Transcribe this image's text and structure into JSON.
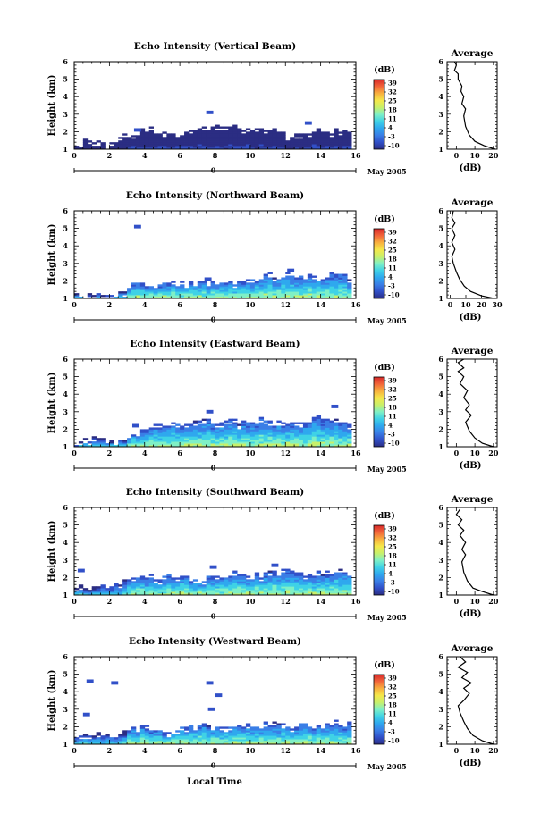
{
  "figure": {
    "xlabel": "Local Time",
    "date_label": "May 2005",
    "midnight_label": "0"
  },
  "colorbar": {
    "unit": "(dB)",
    "ticks": [
      "39",
      "32",
      "25",
      "18",
      "11",
      "4",
      "-3",
      "-10"
    ],
    "range": [
      -10,
      39
    ],
    "colors": [
      "#2b2d83",
      "#3150c8",
      "#3a7ee6",
      "#2fa8ee",
      "#3fd2e6",
      "#7ff0c6",
      "#c8f06a",
      "#f5e84a",
      "#f8b03e",
      "#f2653a",
      "#d82a2a"
    ]
  },
  "chart_data": [
    {
      "type": "heatmap",
      "title": "Echo Intensity (Vertical Beam)",
      "ylabel": "Height (km)",
      "xlim": [
        0,
        16
      ],
      "ylim": [
        1,
        6
      ],
      "xticks": [
        0,
        2,
        4,
        6,
        8,
        10,
        12,
        14,
        16
      ],
      "yticks": [
        1,
        2,
        3,
        4,
        5,
        6
      ],
      "echo_top_km": [
        [
          0,
          1.5
        ],
        [
          1,
          1.5
        ],
        [
          2,
          1.4
        ],
        [
          3,
          1.9
        ],
        [
          4,
          2.2
        ],
        [
          5,
          2.0
        ],
        [
          6,
          1.8
        ],
        [
          7,
          2.3
        ],
        [
          8,
          2.4
        ],
        [
          9,
          2.3
        ],
        [
          10,
          2.3
        ],
        [
          11,
          2.2
        ],
        [
          12,
          1.8
        ],
        [
          13,
          1.8
        ],
        [
          14,
          2.1
        ],
        [
          15,
          2.1
        ],
        [
          15.8,
          1.9
        ]
      ],
      "clouds": [
        [
          7.5,
          3.1
        ],
        [
          3.4,
          2.1
        ],
        [
          13.1,
          2.5
        ]
      ],
      "near_surface_dB": -3,
      "average": {
        "title": "Average",
        "xlabel": "(dB)",
        "xlim": [
          -5,
          22
        ],
        "xticks": [
          0,
          10,
          20
        ],
        "ylim": [
          1,
          6
        ],
        "profile": [
          [
            21,
            1.0
          ],
          [
            15,
            1.2
          ],
          [
            10,
            1.45
          ],
          [
            7,
            1.8
          ],
          [
            5,
            2.3
          ],
          [
            4,
            2.9
          ],
          [
            5,
            3.3
          ],
          [
            3,
            3.6
          ],
          [
            4,
            4.0
          ],
          [
            2.5,
            4.3
          ],
          [
            3,
            4.6
          ],
          [
            1,
            5.0
          ],
          [
            1,
            5.3
          ],
          [
            -1,
            5.5
          ],
          [
            0,
            5.8
          ],
          [
            -1,
            6.0
          ]
        ]
      }
    },
    {
      "type": "heatmap",
      "title": "Echo Intensity (Northward Beam)",
      "ylabel": "Height (km)",
      "xlim": [
        0,
        16
      ],
      "ylim": [
        1,
        6
      ],
      "xticks": [
        0,
        2,
        4,
        6,
        8,
        10,
        12,
        14,
        16
      ],
      "yticks": [
        1,
        2,
        3,
        4,
        5,
        6
      ],
      "echo_top_km": [
        [
          0,
          1.2
        ],
        [
          1,
          1.2
        ],
        [
          2,
          1.3
        ],
        [
          3,
          1.5
        ],
        [
          3.5,
          2.0
        ],
        [
          4,
          1.9
        ],
        [
          5,
          1.8
        ],
        [
          6,
          1.9
        ],
        [
          7,
          1.9
        ],
        [
          8,
          1.9
        ],
        [
          9,
          2.0
        ],
        [
          10,
          2.2
        ],
        [
          11,
          2.3
        ],
        [
          12,
          2.3
        ],
        [
          13,
          2.4
        ],
        [
          14,
          2.3
        ],
        [
          15,
          2.5
        ],
        [
          15.8,
          2.2
        ]
      ],
      "clouds": [
        [
          3.4,
          5.1
        ],
        [
          12.1,
          2.6
        ],
        [
          7.4,
          2.1
        ]
      ],
      "near_surface_dB": 18,
      "average": {
        "title": "Average",
        "xlabel": "(dB)",
        "xlim": [
          -2,
          30
        ],
        "xticks": [
          0,
          10,
          20,
          30
        ],
        "ylim": [
          1,
          6
        ],
        "profile": [
          [
            28,
            1.0
          ],
          [
            20,
            1.15
          ],
          [
            13,
            1.4
          ],
          [
            9,
            1.7
          ],
          [
            6,
            2.1
          ],
          [
            4,
            2.5
          ],
          [
            2,
            3.0
          ],
          [
            1,
            3.4
          ],
          [
            3,
            3.8
          ],
          [
            1,
            4.2
          ],
          [
            3,
            4.6
          ],
          [
            1,
            5.0
          ],
          [
            3,
            5.3
          ],
          [
            1,
            5.6
          ],
          [
            2,
            6.0
          ]
        ]
      }
    },
    {
      "type": "heatmap",
      "title": "Echo Intensity (Eastward Beam)",
      "ylabel": "Height (km)",
      "xlim": [
        0,
        16
      ],
      "ylim": [
        1,
        6
      ],
      "xticks": [
        0,
        2,
        4,
        6,
        8,
        10,
        12,
        14,
        16
      ],
      "yticks": [
        1,
        2,
        3,
        4,
        5,
        6
      ],
      "echo_top_km": [
        [
          0,
          1.2
        ],
        [
          1,
          1.4
        ],
        [
          2,
          1.4
        ],
        [
          3,
          1.6
        ],
        [
          4,
          2.0
        ],
        [
          5,
          2.2
        ],
        [
          6,
          2.3
        ],
        [
          7,
          2.6
        ],
        [
          8,
          2.4
        ],
        [
          9,
          2.4
        ],
        [
          10,
          2.5
        ],
        [
          11,
          2.5
        ],
        [
          12,
          2.4
        ],
        [
          13,
          2.4
        ],
        [
          14,
          2.7
        ],
        [
          15,
          2.5
        ],
        [
          15.8,
          2.2
        ]
      ],
      "clouds": [
        [
          7.5,
          3.0
        ],
        [
          14.6,
          3.3
        ],
        [
          3.3,
          2.2
        ]
      ],
      "near_surface_dB": 18,
      "average": {
        "title": "Average",
        "xlabel": "(dB)",
        "xlim": [
          -5,
          22
        ],
        "xticks": [
          0,
          10,
          20
        ],
        "ylim": [
          1,
          6
        ],
        "profile": [
          [
            20,
            1.0
          ],
          [
            14,
            1.2
          ],
          [
            10,
            1.5
          ],
          [
            7,
            1.9
          ],
          [
            5,
            2.4
          ],
          [
            8,
            2.8
          ],
          [
            5,
            3.1
          ],
          [
            7,
            3.4
          ],
          [
            4,
            3.8
          ],
          [
            6,
            4.2
          ],
          [
            2,
            4.6
          ],
          [
            4,
            5.0
          ],
          [
            1,
            5.3
          ],
          [
            4,
            5.5
          ],
          [
            1,
            5.8
          ],
          [
            4,
            6.0
          ]
        ]
      }
    },
    {
      "type": "heatmap",
      "title": "Echo Intensity (Southward Beam)",
      "ylabel": "Height (km)",
      "xlim": [
        0,
        16
      ],
      "ylim": [
        1,
        6
      ],
      "xticks": [
        0,
        2,
        4,
        6,
        8,
        10,
        12,
        14,
        16
      ],
      "yticks": [
        1,
        2,
        3,
        4,
        5,
        6
      ],
      "echo_top_km": [
        [
          0,
          1.4
        ],
        [
          1,
          1.4
        ],
        [
          2,
          1.6
        ],
        [
          3,
          1.9
        ],
        [
          4,
          2.0
        ],
        [
          5,
          2.0
        ],
        [
          6,
          2.1
        ],
        [
          7,
          1.9
        ],
        [
          8,
          2.1
        ],
        [
          9,
          2.2
        ],
        [
          10,
          2.2
        ],
        [
          11,
          2.3
        ],
        [
          12,
          2.4
        ],
        [
          13,
          2.3
        ],
        [
          14,
          2.3
        ],
        [
          15,
          2.4
        ],
        [
          15.8,
          2.2
        ]
      ],
      "clouds": [
        [
          0.2,
          2.4
        ],
        [
          7.7,
          2.6
        ],
        [
          11.2,
          2.7
        ]
      ],
      "near_surface_dB": 18,
      "average": {
        "title": "Average",
        "xlabel": "(dB)",
        "xlim": [
          -5,
          22
        ],
        "xticks": [
          0,
          10,
          20
        ],
        "ylim": [
          1,
          6
        ],
        "profile": [
          [
            20,
            1.0
          ],
          [
            14,
            1.2
          ],
          [
            9,
            1.4
          ],
          [
            6,
            1.8
          ],
          [
            4,
            2.3
          ],
          [
            3,
            2.9
          ],
          [
            5,
            3.3
          ],
          [
            3,
            3.6
          ],
          [
            5,
            4.0
          ],
          [
            2,
            4.4
          ],
          [
            4,
            4.7
          ],
          [
            1,
            5.0
          ],
          [
            3,
            5.3
          ],
          [
            0,
            5.6
          ],
          [
            2,
            5.9
          ]
        ]
      }
    },
    {
      "type": "heatmap",
      "title": "Echo Intensity (Westward Beam)",
      "ylabel": "Height (km)",
      "xlim": [
        0,
        16
      ],
      "ylim": [
        1,
        6
      ],
      "xticks": [
        0,
        2,
        4,
        6,
        8,
        10,
        12,
        14,
        16
      ],
      "yticks": [
        1,
        2,
        3,
        4,
        5,
        6
      ],
      "echo_top_km": [
        [
          0,
          1.4
        ],
        [
          1,
          1.6
        ],
        [
          2,
          1.6
        ],
        [
          3,
          1.8
        ],
        [
          4,
          2.1
        ],
        [
          5,
          1.8
        ],
        [
          6,
          1.9
        ],
        [
          7,
          2.2
        ],
        [
          8,
          2.0
        ],
        [
          9,
          2.0
        ],
        [
          10,
          2.1
        ],
        [
          11,
          2.2
        ],
        [
          12,
          2.0
        ],
        [
          13,
          2.1
        ],
        [
          14,
          2.1
        ],
        [
          15,
          2.3
        ],
        [
          15.8,
          2.2
        ]
      ],
      "clouds": [
        [
          0.7,
          4.6
        ],
        [
          2.1,
          4.5
        ],
        [
          7.5,
          4.5
        ],
        [
          8.0,
          3.8
        ],
        [
          0.5,
          2.7
        ],
        [
          7.6,
          3.0
        ]
      ],
      "near_surface_dB": 18,
      "average": {
        "title": "Average",
        "xlabel": "(dB)",
        "xlim": [
          -5,
          22
        ],
        "xticks": [
          0,
          10,
          20
        ],
        "ylim": [
          1,
          6
        ],
        "profile": [
          [
            20,
            1.0
          ],
          [
            14,
            1.2
          ],
          [
            9,
            1.5
          ],
          [
            6,
            1.9
          ],
          [
            4,
            2.3
          ],
          [
            2,
            2.8
          ],
          [
            1,
            3.2
          ],
          [
            4,
            3.5
          ],
          [
            7,
            3.9
          ],
          [
            4,
            4.2
          ],
          [
            8,
            4.5
          ],
          [
            3,
            4.8
          ],
          [
            6,
            5.1
          ],
          [
            1,
            5.4
          ],
          [
            5,
            5.7
          ],
          [
            2,
            6.0
          ]
        ]
      }
    }
  ]
}
